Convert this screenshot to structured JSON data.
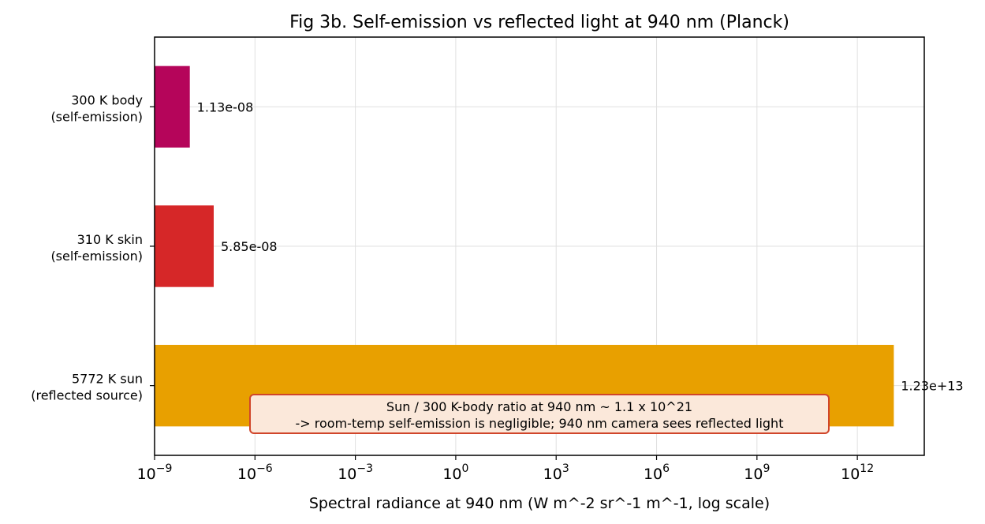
{
  "chart_data": {
    "type": "bar",
    "orientation": "horizontal",
    "title": "Fig 3b. Self-emission vs reflected light at 940 nm (Planck)",
    "xlabel": "Spectral radiance at 940 nm  (W m^-2 sr^-1 m^-1, log scale)",
    "ylabel": "",
    "xscale": "log",
    "xlim": [
      1e-09,
      100000000000000.0
    ],
    "xticks": [
      {
        "exp": "−9",
        "value": 1e-09
      },
      {
        "exp": "−6",
        "value": 1e-06
      },
      {
        "exp": "−3",
        "value": 0.001
      },
      {
        "exp": "0",
        "value": 1
      },
      {
        "exp": "3",
        "value": 1000.0
      },
      {
        "exp": "6",
        "value": 1000000.0
      },
      {
        "exp": "9",
        "value": 1000000000.0
      },
      {
        "exp": "12",
        "value": 1000000000000.0
      }
    ],
    "grid": true,
    "categories": [
      {
        "line1": "300 K body",
        "line2": "(self-emission)"
      },
      {
        "line1": "310 K skin",
        "line2": "(self-emission)"
      },
      {
        "line1": "5772 K sun",
        "line2": "(reflected source)"
      }
    ],
    "values": [
      1.13e-08,
      5.85e-08,
      12300000000000.0
    ],
    "value_labels": [
      "1.13e-08",
      "5.85e-08",
      "1.23e+13"
    ],
    "colors": [
      "#b5055a",
      "#d62728",
      "#e8a000"
    ],
    "annotation": {
      "line1": "Sun / 300 K-body ratio at 940 nm ~ 1.1 x 10^21",
      "line2": "-> room-temp self-emission is negligible; 940 nm camera sees reflected light",
      "background": "#fbe8da",
      "border": "#d0452a"
    }
  }
}
